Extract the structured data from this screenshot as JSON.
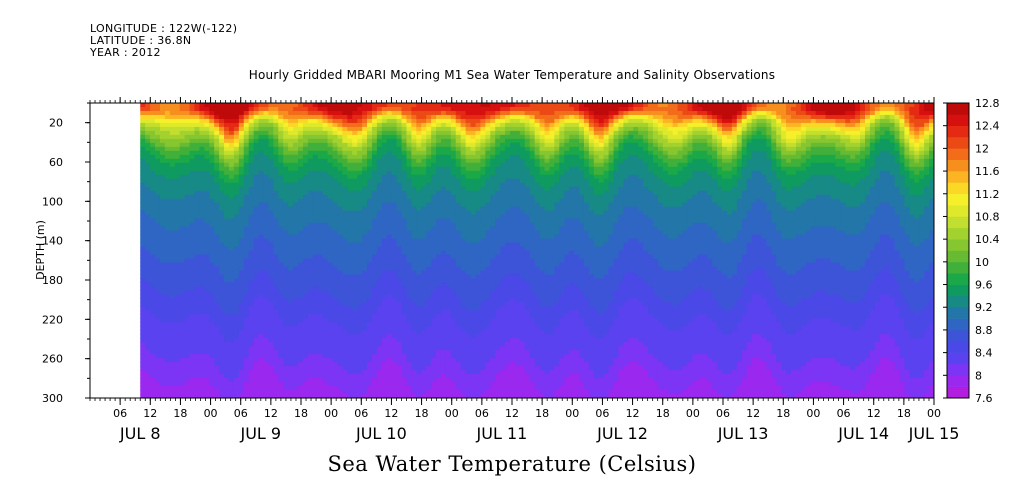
{
  "meta": {
    "longitude": "LONGITUDE : 122W(-122)",
    "latitude": "LATITUDE : 36.8N",
    "year": "YEAR : 2012"
  },
  "chart_data": {
    "type": "heatmap",
    "title": "Hourly Gridded MBARI Mooring M1 Sea Water Temperature and Salinity Observations",
    "xlabel": "Sea Water Temperature (Celsius)",
    "ylabel": "DEPTH (m)",
    "x_range_hours": [
      0,
      168
    ],
    "x_axis_start": "JUL 8 00:00",
    "data_start_hour": 10,
    "ylim": [
      300,
      0
    ],
    "y_ticks": [
      20,
      60,
      100,
      140,
      180,
      220,
      260,
      300
    ],
    "x_hour_labels": [
      "06",
      "12",
      "18",
      "00",
      "06",
      "12",
      "18",
      "00",
      "06",
      "12",
      "18",
      "00",
      "06",
      "12",
      "18",
      "00",
      "06",
      "12",
      "18",
      "00",
      "06",
      "12",
      "18",
      "00",
      "06",
      "12",
      "18",
      "00"
    ],
    "x_day_labels": [
      {
        "label": "JUL  8",
        "hour": 10
      },
      {
        "label": "JUL  9",
        "hour": 34
      },
      {
        "label": "JUL 10",
        "hour": 58
      },
      {
        "label": "JUL 11",
        "hour": 82
      },
      {
        "label": "JUL 12",
        "hour": 106
      },
      {
        "label": "JUL 13",
        "hour": 130
      },
      {
        "label": "JUL 14",
        "hour": 154
      },
      {
        "label": "JUL 15",
        "hour": 168
      }
    ],
    "colorbar": {
      "labels": [
        "12.8",
        "12.4",
        "12",
        "11.6",
        "11.2",
        "10.8",
        "10.4",
        "10",
        "9.6",
        "9.2",
        "8.8",
        "8.4",
        "8",
        "7.6"
      ],
      "levels": [
        7.6,
        7.8,
        8.0,
        8.2,
        8.4,
        8.6,
        8.8,
        9.0,
        9.2,
        9.4,
        9.6,
        9.8,
        10.0,
        10.2,
        10.4,
        10.6,
        10.8,
        11.0,
        11.2,
        11.4,
        11.6,
        11.8,
        12.0,
        12.2,
        12.4,
        12.6,
        12.8
      ],
      "colors": [
        "#b21edd",
        "#9b28ee",
        "#7c35f5",
        "#5b42f0",
        "#4a48e6",
        "#3d54d8",
        "#2f66c4",
        "#2276a8",
        "#178a86",
        "#0f9a60",
        "#1aa848",
        "#40b03a",
        "#66bb33",
        "#86c630",
        "#a3d22f",
        "#c2de2e",
        "#dfe92c",
        "#f5f02a",
        "#fbd726",
        "#fbb522",
        "#f78f1e",
        "#f26c1a",
        "#ec4a15",
        "#e42a12",
        "#d5100f",
        "#bf0a0a"
      ]
    },
    "profile": [
      {
        "depth": 5,
        "temp": 12.4
      },
      {
        "depth": 12,
        "temp": 12.0
      },
      {
        "depth": 20,
        "temp": 11.2
      },
      {
        "depth": 30,
        "temp": 10.6
      },
      {
        "depth": 45,
        "temp": 10.0
      },
      {
        "depth": 60,
        "temp": 9.6
      },
      {
        "depth": 80,
        "temp": 9.3
      },
      {
        "depth": 110,
        "temp": 9.1
      },
      {
        "depth": 140,
        "temp": 8.9
      },
      {
        "depth": 180,
        "temp": 8.7
      },
      {
        "depth": 220,
        "temp": 8.4
      },
      {
        "depth": 260,
        "temp": 8.2
      },
      {
        "depth": 285,
        "temp": 8.0
      },
      {
        "depth": 300,
        "temp": 7.8
      }
    ]
  }
}
